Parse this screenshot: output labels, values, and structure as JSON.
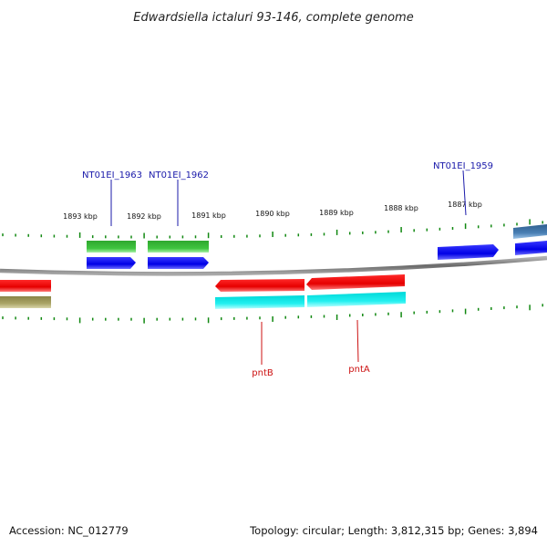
{
  "title": "Edwardsiella ictaluri 93-146, complete genome",
  "footer": {
    "accession": "Accession: NC_012779",
    "summary": "Topology: circular; Length: 3,812,315 bp; Genes: 3,894"
  },
  "scale_labels": [
    "1893 kbp",
    "1892 kbp",
    "1891 kbp",
    "1890 kbp",
    "1889 kbp",
    "1888 kbp",
    "1887 kbp"
  ],
  "gene_labels": [
    {
      "text": "NT01EI_1963",
      "color": "#1a1aaa"
    },
    {
      "text": "NT01EI_1962",
      "color": "#1a1aaa"
    },
    {
      "text": "NT01EI_1959",
      "color": "#1a1aaa"
    },
    {
      "text": "pntB",
      "color": "#cc1111"
    },
    {
      "text": "pntA",
      "color": "#cc1111"
    }
  ],
  "colors": {
    "cds_blue": "#0000ee",
    "gene_green": "#33bb33",
    "cds_red": "#ee0000",
    "gene_cyan": "#00eeee",
    "olive": "#a09a5a",
    "steel": "#4a7fb0",
    "backbone": "#888888",
    "tick": "#118811"
  }
}
